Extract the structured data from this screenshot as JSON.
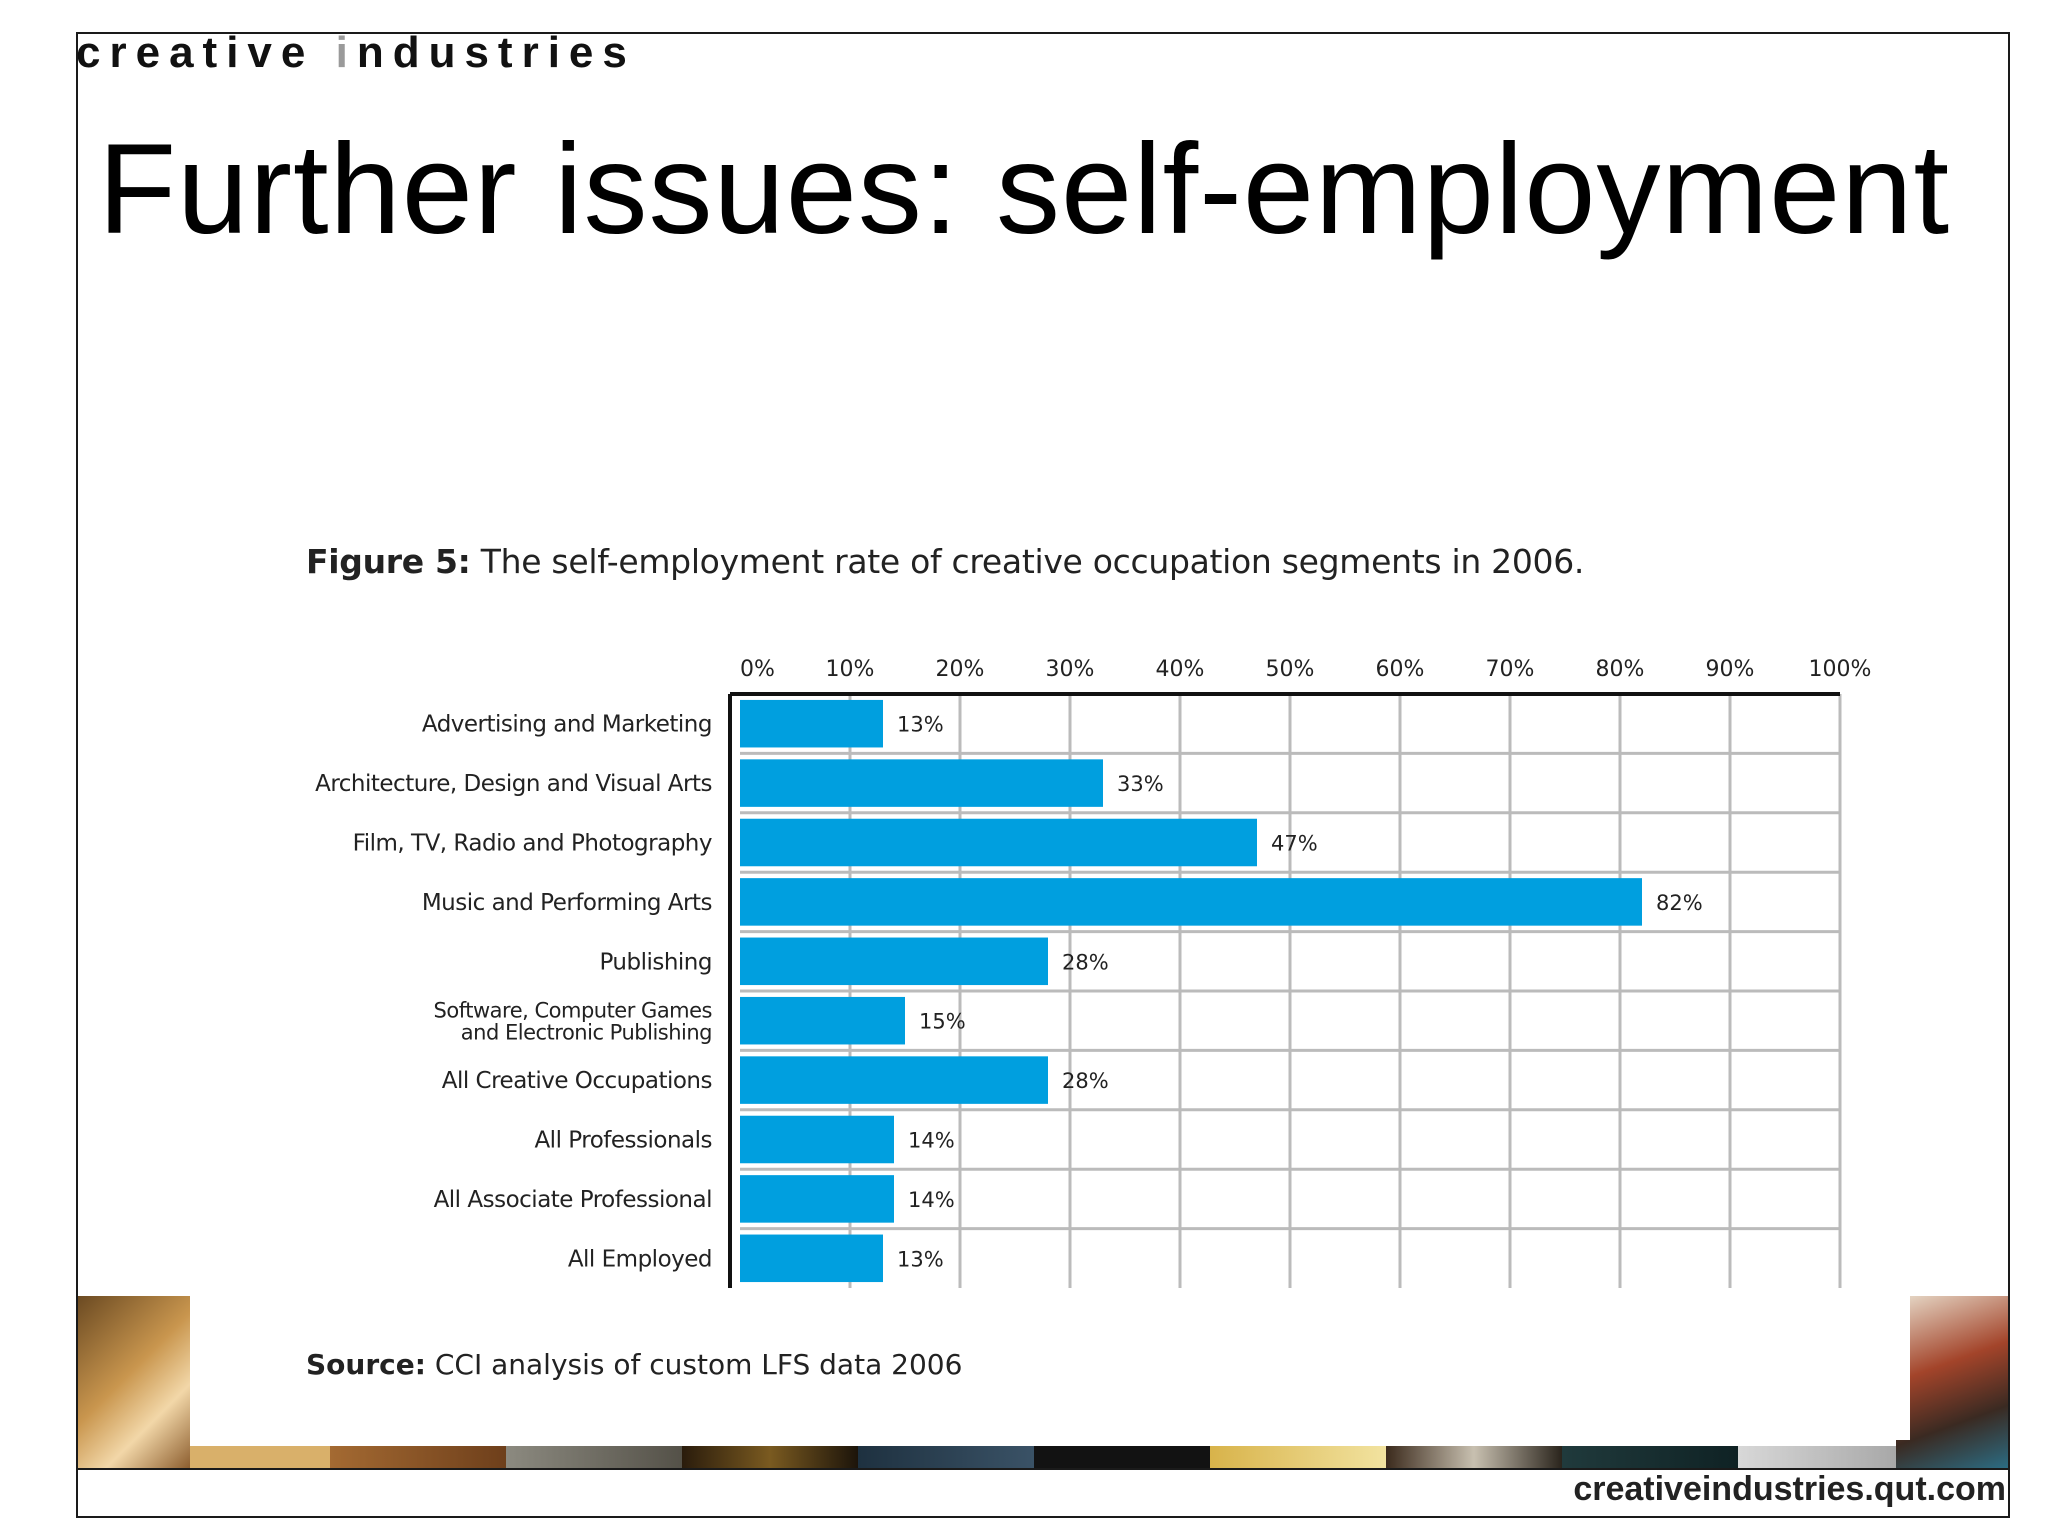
{
  "brand": {
    "part1": "creative ",
    "accent": "i",
    "part2": "ndustries"
  },
  "slide_title": "Further issues: self-employment",
  "figure_caption": {
    "label": "Figure 5:",
    "text": " The self-employment rate of creative occupation segments in 2006."
  },
  "source_note": {
    "label": "Source:",
    "text": " CCI analysis of custom LFS data 2006"
  },
  "footer_url": "creativeindustries.qut.com",
  "colors": {
    "bar": "#009fdf",
    "grid": "#bbbbbb",
    "axis": "#111111"
  },
  "chart_data": {
    "type": "bar",
    "orientation": "horizontal",
    "title": "",
    "xlabel": "",
    "ylabel": "",
    "xlim": [
      0,
      100
    ],
    "x_ticks": [
      "0%",
      "10%",
      "20%",
      "30%",
      "40%",
      "50%",
      "60%",
      "70%",
      "80%",
      "90%",
      "100%"
    ],
    "x_axis_position": "top",
    "grid": true,
    "categories": [
      [
        "Advertising and Marketing"
      ],
      [
        "Architecture, Design and Visual Arts"
      ],
      [
        "Film, TV, Radio and Photography"
      ],
      [
        "Music and Performing Arts"
      ],
      [
        "Publishing"
      ],
      [
        "Software, Computer Games",
        "and Electronic Publishing"
      ],
      [
        "All Creative Occupations"
      ],
      [
        "All Professionals"
      ],
      [
        "All Associate Professional"
      ],
      [
        "All Employed"
      ]
    ],
    "values": [
      13,
      33,
      47,
      82,
      28,
      15,
      28,
      14,
      14,
      13
    ],
    "data_labels": [
      "13%",
      "33%",
      "47%",
      "82%",
      "28%",
      "15%",
      "28%",
      "14%",
      "14%",
      "13%"
    ]
  }
}
